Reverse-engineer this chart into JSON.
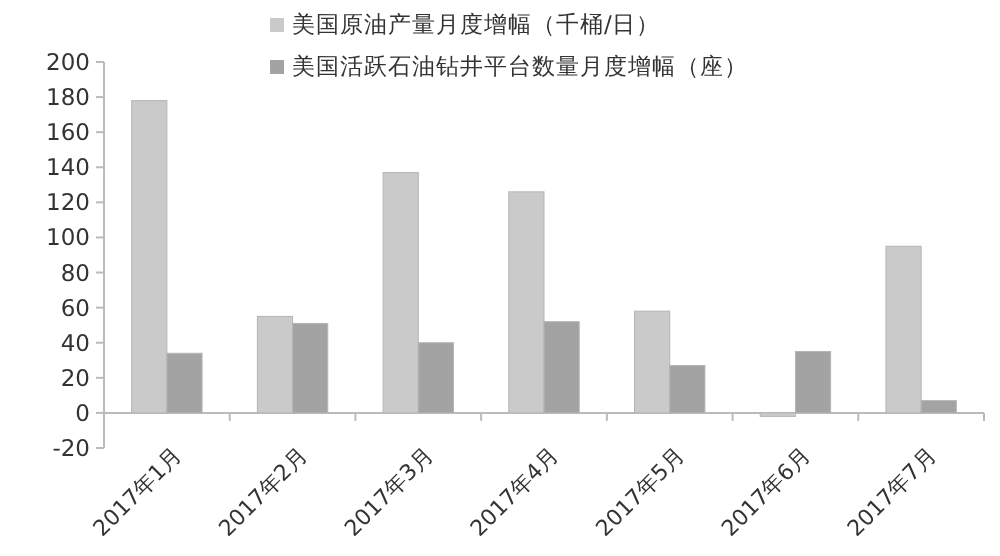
{
  "chart_data": {
    "type": "bar",
    "categories": [
      "2017年1月",
      "2017年2月",
      "2017年3月",
      "2017年4月",
      "2017年5月",
      "2017年6月",
      "2017年7月"
    ],
    "series": [
      {
        "name": "美国原油产量月度增幅（千桶/日）",
        "color": "#cacaca",
        "values": [
          178,
          55,
          137,
          126,
          58,
          -2,
          95
        ]
      },
      {
        "name": "美国活跃石油钻井平台数量月度增幅（座）",
        "color": "#a3a3a3",
        "values": [
          34,
          51,
          40,
          52,
          27,
          35,
          7
        ]
      }
    ],
    "ylim": [
      -20,
      200
    ],
    "yticks": [
      -20,
      0,
      20,
      40,
      60,
      80,
      100,
      120,
      140,
      160,
      180,
      200
    ],
    "grid": false,
    "legend": "top"
  }
}
